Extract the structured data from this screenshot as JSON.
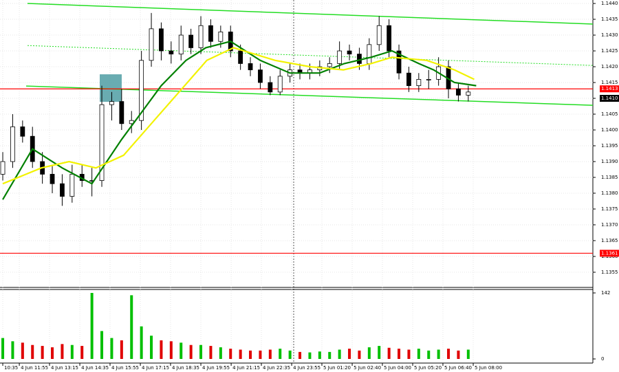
{
  "chart_data": {
    "type": "candlestick",
    "open": [
      1.1386,
      1.139,
      1.1401,
      1.1398,
      1.139,
      1.1386,
      1.1383,
      1.1379,
      1.1386,
      1.1384,
      1.1384,
      1.1408,
      1.1409,
      1.1402,
      1.1403,
      1.1422,
      1.1432,
      1.1425,
      1.1424,
      1.143,
      1.1426,
      1.1433,
      1.1428,
      1.1431,
      1.1425,
      1.1421,
      1.1419,
      1.1415,
      1.1412,
      1.1417,
      1.1419,
      1.1418,
      1.1419,
      1.142,
      1.1421,
      1.1425,
      1.1424,
      1.1421,
      1.1427,
      1.1433,
      1.1425,
      1.1418,
      1.1414,
      1.1416,
      1.1416,
      1.142,
      1.1413,
      1.1411
    ],
    "high": [
      1.1393,
      1.1405,
      1.1403,
      1.1401,
      1.1393,
      1.1389,
      1.1386,
      1.1389,
      1.1389,
      1.1388,
      1.1414,
      1.1412,
      1.1413,
      1.1406,
      1.1425,
      1.1437,
      1.1434,
      1.1428,
      1.1433,
      1.1432,
      1.1436,
      1.1435,
      1.1433,
      1.1433,
      1.1427,
      1.1423,
      1.1421,
      1.1417,
      1.1419,
      1.1421,
      1.1421,
      1.1421,
      1.1422,
      1.1423,
      1.1428,
      1.1427,
      1.1426,
      1.1429,
      1.1436,
      1.1435,
      1.1427,
      1.142,
      1.1418,
      1.1419,
      1.1423,
      1.1422,
      1.1415,
      1.1414
    ],
    "low": [
      1.1384,
      1.1388,
      1.1396,
      1.1388,
      1.1383,
      1.138,
      1.1376,
      1.1377,
      1.1382,
      1.1379,
      1.1382,
      1.1403,
      1.14,
      1.1399,
      1.14,
      1.142,
      1.1422,
      1.1421,
      1.1422,
      1.1424,
      1.1424,
      1.1426,
      1.1426,
      1.1423,
      1.1419,
      1.1417,
      1.1413,
      1.1411,
      1.1411,
      1.1415,
      1.1416,
      1.1416,
      1.1417,
      1.1418,
      1.1419,
      1.1422,
      1.1419,
      1.1419,
      1.1425,
      1.1423,
      1.1416,
      1.1412,
      1.1412,
      1.1413,
      1.1414,
      1.141,
      1.1409,
      1.1409
    ],
    "close": [
      1.139,
      1.1401,
      1.1398,
      1.139,
      1.1386,
      1.1383,
      1.1379,
      1.1386,
      1.1384,
      1.1384,
      1.1408,
      1.1409,
      1.1402,
      1.1403,
      1.1422,
      1.1432,
      1.1425,
      1.1424,
      1.143,
      1.1426,
      1.1433,
      1.1428,
      1.1431,
      1.1425,
      1.1421,
      1.1419,
      1.1415,
      1.1412,
      1.1417,
      1.1419,
      1.1418,
      1.1419,
      1.142,
      1.1421,
      1.1425,
      1.1424,
      1.1421,
      1.1427,
      1.1433,
      1.1425,
      1.1418,
      1.1414,
      1.1416,
      1.1416,
      1.142,
      1.1413,
      1.1411,
      1.1412
    ],
    "up_color": "#ffffff",
    "down_color": "#000000",
    "xlim": [
      -0.28,
      59.58
    ],
    "ylim": [
      1.13502,
      1.14411
    ],
    "xticks": [
      {
        "value": 0,
        "label": "10:35"
      },
      {
        "value": 1.67,
        "label": "4 Jun 11:55"
      },
      {
        "value": 4.72,
        "label": "4 Jun 13:15"
      },
      {
        "value": 7.78,
        "label": "4 Jun 14:35"
      },
      {
        "value": 10.83,
        "label": "4 Jun 15:55"
      },
      {
        "value": 13.89,
        "label": "4 Jun 17:15"
      },
      {
        "value": 16.94,
        "label": "4 Jun 18:35"
      },
      {
        "value": 20,
        "label": "4 Jun 19:55"
      },
      {
        "value": 23.06,
        "label": "4 Jun 21:15"
      },
      {
        "value": 26.11,
        "label": "4 Jun 22:35"
      },
      {
        "value": 29.17,
        "label": "4 Jun 23:55"
      },
      {
        "value": 32.22,
        "label": "5 Jun 01:20"
      },
      {
        "value": 35.28,
        "label": "5 Jun 02:40"
      },
      {
        "value": 38.33,
        "label": "5 Jun 04:00"
      },
      {
        "value": 41.39,
        "label": "5 Jun 05:20"
      },
      {
        "value": 44.44,
        "label": "5 Jun 06:40"
      },
      {
        "value": 47.5,
        "label": "5 Jun 08:00"
      }
    ],
    "yticks": [
      1.1355,
      {
        "value": 1.136,
        "label": "1.1360"
      },
      1.1365,
      {
        "value": 1.137,
        "label": "1.1370"
      },
      1.1375,
      {
        "value": 1.138,
        "label": "1.1380"
      },
      1.1385,
      {
        "value": 1.139,
        "label": "1.1390"
      },
      1.1395,
      {
        "value": 1.14,
        "label": "1.1400"
      },
      1.1405,
      {
        "value": 1.141,
        "label": "1.1410"
      },
      1.1415,
      {
        "value": 1.142,
        "label": "1.1420"
      },
      1.1425,
      {
        "value": 1.143,
        "label": "1.1430"
      },
      1.1435,
      {
        "value": 1.144,
        "label": "1.1440"
      }
    ],
    "grid": true,
    "overlays": [
      {
        "color": "#008000",
        "width": 2.2,
        "x": [
          0,
          3,
          6,
          9,
          12,
          16,
          18.5,
          20.5,
          23,
          26,
          29,
          32,
          34.5,
          37.2,
          39.3,
          42,
          43.5,
          45.6,
          47.8
        ],
        "values": [
          1.1378,
          1.1394,
          1.1388,
          1.1383,
          1.1397,
          1.1414,
          1.1422,
          1.1426,
          1.1428,
          1.1422,
          1.1418,
          1.1418,
          1.1421,
          1.1423,
          1.1425,
          1.1421,
          1.1419,
          1.1415,
          1.1414
        ]
      },
      {
        "color": "#f2f200",
        "width": 2.2,
        "x": [
          0,
          3.9,
          6.7,
          9.4,
          12.2,
          15,
          17.8,
          20.6,
          23.3,
          27.5,
          31,
          34.4,
          37.2,
          39.3,
          42.8,
          45.6,
          47.6
        ],
        "values": [
          1.1383,
          1.1388,
          1.139,
          1.1388,
          1.1392,
          1.1402,
          1.1412,
          1.1422,
          1.1426,
          1.1422,
          1.142,
          1.1419,
          1.1421,
          1.1423,
          1.1422,
          1.1419,
          1.1416
        ]
      }
    ],
    "trendlines": [
      {
        "color": "#22dd22",
        "dashed": false,
        "x": [
          2.5,
          59.58
        ],
        "values": [
          1.144,
          1.14335
        ]
      },
      {
        "color": "#22dd22",
        "dashed": false,
        "x": [
          2.36,
          59.58
        ],
        "values": [
          1.14139,
          1.14078
        ]
      },
      {
        "color": "#22dd22",
        "dashed": true,
        "x": [
          2.5,
          59.58
        ],
        "values": [
          1.14267,
          1.14204
        ]
      }
    ],
    "zone": {
      "x": [
        9.79,
        12.01
      ],
      "values": [
        1.14176,
        1.14089
      ],
      "color": "#4f9ea3"
    },
    "levels": [
      {
        "price": 1.1413,
        "color": "#ff0000",
        "line": true
      },
      {
        "price": {
          "value": 1.141,
          "label": "1.1410"
        },
        "color": "#000000",
        "line": false
      },
      {
        "price": 1.1361,
        "color": "#ff0000",
        "line": true
      }
    ],
    "volume": {
      "values": [
        45,
        38,
        35,
        30,
        28,
        25,
        32,
        30,
        28,
        142,
        60,
        45,
        40,
        137,
        70,
        50,
        40,
        38,
        35,
        30,
        30,
        28,
        25,
        22,
        20,
        18,
        18,
        20,
        22,
        18,
        15,
        14,
        16,
        15,
        20,
        22,
        18,
        25,
        28,
        24,
        22,
        20,
        22,
        18,
        20,
        22,
        18,
        20
      ],
      "up_color": "#00c000",
      "down_color": "#e00000",
      "ylim": [
        0,
        142
      ],
      "yticks": [
        0,
        142
      ]
    }
  }
}
